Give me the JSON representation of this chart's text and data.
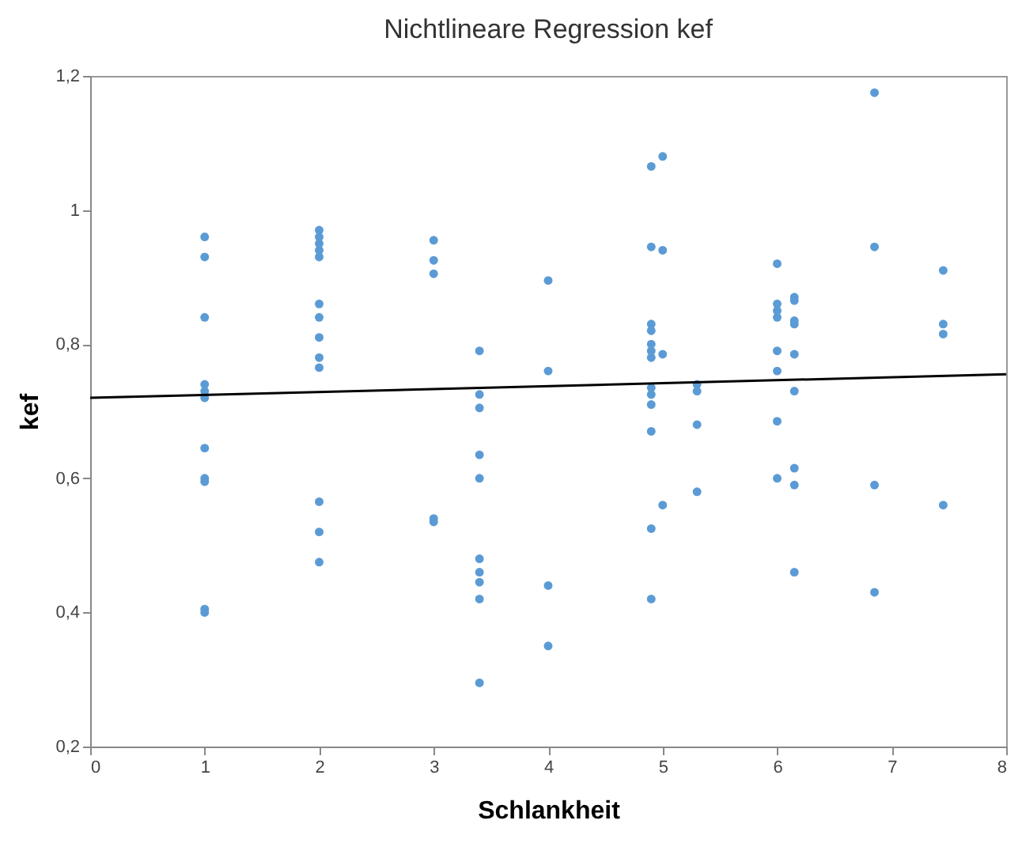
{
  "chart_data": {
    "type": "scatter",
    "title": "Nichtlineare Regression kef",
    "xlabel": "Schlankheit",
    "ylabel": "kef",
    "xlim": [
      0,
      8
    ],
    "xticks": [
      0,
      1,
      2,
      3,
      4,
      5,
      6,
      7,
      8
    ],
    "ylim": [
      0.2,
      1.2
    ],
    "yticks": [
      {
        "value": 0.2,
        "label": "0,2"
      },
      {
        "value": 0.4,
        "label": "0,4"
      },
      {
        "value": 0.6,
        "label": "0,6"
      },
      {
        "value": 0.8,
        "label": "0,8"
      },
      {
        "value": 1,
        "label": "1"
      },
      {
        "value": 1.2,
        "label": "1,2"
      }
    ],
    "grid": false,
    "series": [
      {
        "color": "#5b9bd5",
        "marker": "circle",
        "x": [
          1,
          1,
          1,
          1,
          1,
          1,
          1,
          1,
          1,
          1,
          1,
          2,
          2,
          2,
          2,
          2,
          2,
          2,
          2,
          2,
          2,
          2,
          2,
          2,
          3,
          3,
          3,
          3,
          3,
          3.4,
          3.4,
          3.4,
          3.4,
          3.4,
          3.4,
          3.4,
          3.4,
          3.4,
          3.4,
          4,
          4,
          4,
          4,
          4.9,
          4.9,
          4.9,
          4.9,
          4.9,
          4.9,
          4.9,
          4.9,
          4.9,
          4.9,
          4.9,
          4.9,
          4.9,
          5,
          5,
          5,
          5,
          5.3,
          5.3,
          5.3,
          5.3,
          6,
          6,
          6,
          6,
          6,
          6,
          6,
          6,
          6.15,
          6.15,
          6.15,
          6.15,
          6.15,
          6.15,
          6.15,
          6.15,
          6.15,
          6.85,
          6.85,
          6.85,
          6.85,
          7.45,
          7.45,
          7.45,
          7.45
        ],
        "values": [
          0.96,
          0.93,
          0.84,
          0.74,
          0.73,
          0.72,
          0.645,
          0.6,
          0.595,
          0.405,
          0.4,
          0.97,
          0.96,
          0.95,
          0.94,
          0.93,
          0.86,
          0.84,
          0.81,
          0.78,
          0.765,
          0.565,
          0.52,
          0.475,
          0.955,
          0.925,
          0.905,
          0.54,
          0.535,
          0.79,
          0.725,
          0.705,
          0.635,
          0.6,
          0.48,
          0.46,
          0.445,
          0.42,
          0.295,
          0.895,
          0.76,
          0.44,
          0.35,
          1.065,
          0.945,
          0.83,
          0.82,
          0.8,
          0.79,
          0.78,
          0.735,
          0.725,
          0.71,
          0.67,
          0.525,
          0.42,
          1.08,
          0.94,
          0.785,
          0.56,
          0.74,
          0.73,
          0.68,
          0.58,
          0.92,
          0.86,
          0.85,
          0.84,
          0.79,
          0.76,
          0.685,
          0.6,
          0.87,
          0.865,
          0.835,
          0.83,
          0.785,
          0.73,
          0.615,
          0.59,
          0.46,
          1.175,
          0.945,
          0.59,
          0.43,
          0.91,
          0.83,
          0.815,
          0.56
        ]
      },
      {
        "type": "line",
        "color": "#000000",
        "marker": "none",
        "line_style": "solid",
        "x": [
          0,
          8
        ],
        "values": [
          0.72,
          0.755
        ]
      }
    ]
  }
}
